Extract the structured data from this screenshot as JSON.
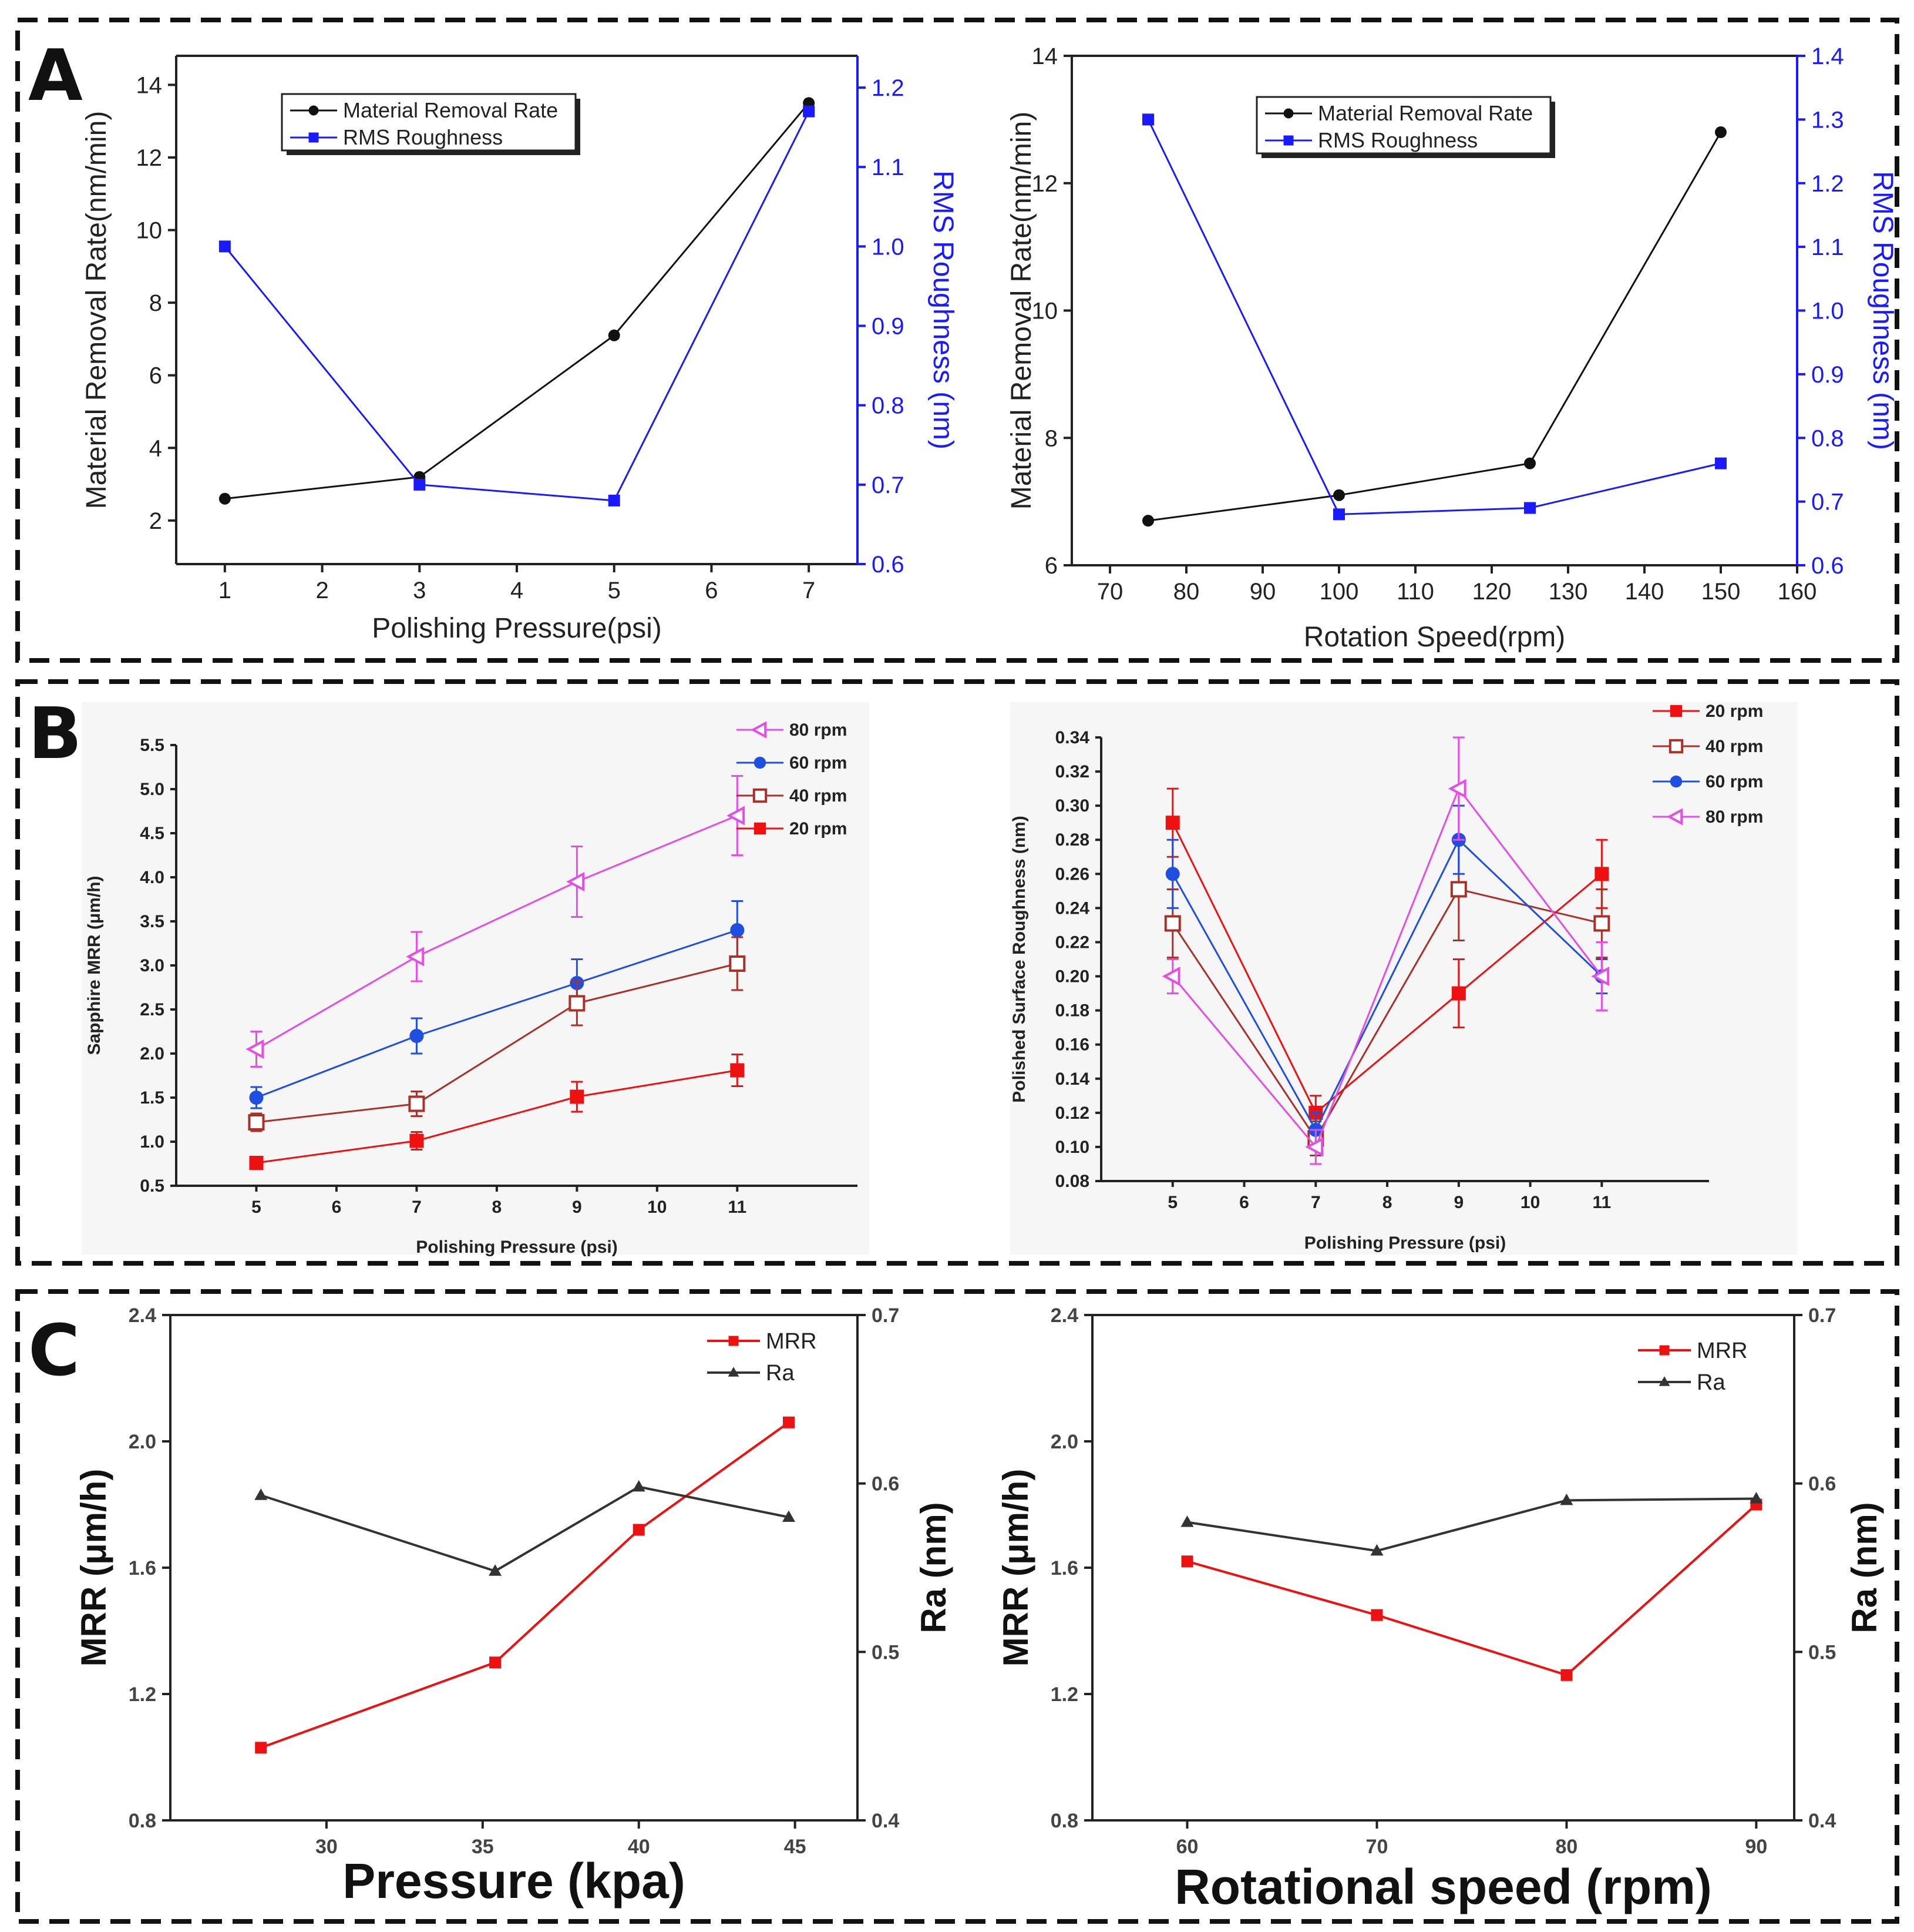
{
  "figure": {
    "panel_labels": [
      "A",
      "B",
      "C"
    ]
  },
  "colors": {
    "black": "#111111",
    "blue": "#1a1aff",
    "magenta": "#e64ce6",
    "royal_blue": "#1f4fe0",
    "brown": "#a8322a",
    "red": "#ee1111",
    "dark_gray": "#333333"
  },
  "chart_data": [
    {
      "id": "A1",
      "type": "line",
      "title": "",
      "xlabel": "Polishing Pressure(psi)",
      "ylabel": "Material Removal Rate(nm/min)",
      "y2label": "RMS Roughness (nm)",
      "xlim": [
        0.5,
        7.5
      ],
      "ylim": [
        0.8,
        14.8
      ],
      "y2lim": [
        0.6,
        1.24
      ],
      "xticks": [
        1,
        2,
        3,
        4,
        5,
        6,
        7
      ],
      "yticks": [
        2,
        4,
        6,
        8,
        10,
        12,
        14
      ],
      "y2ticks": [
        0.6,
        0.7,
        0.8,
        0.9,
        1.0,
        1.1,
        1.2
      ],
      "y2tick_labels": [
        "0.6",
        "0.7",
        "0.8",
        "0.9",
        "1.0",
        "1.1",
        "1.2"
      ],
      "legend_position": "top-left",
      "series": [
        {
          "name": "Material Removal Rate",
          "axis": "left",
          "color": "#111111",
          "marker": "circle",
          "x": [
            1,
            3,
            5,
            7
          ],
          "y": [
            2.6,
            3.2,
            7.1,
            13.5
          ]
        },
        {
          "name": "RMS Roughness",
          "axis": "right",
          "color": "#1a1aff",
          "marker": "square",
          "x": [
            1,
            3,
            5,
            7
          ],
          "y": [
            1.0,
            0.7,
            0.68,
            1.17
          ]
        }
      ]
    },
    {
      "id": "A2",
      "type": "line",
      "title": "",
      "xlabel": "Rotation Speed(rpm)",
      "ylabel": "Material Removal Rate(nm/min)",
      "y2label": "RMS Roughness (nm)",
      "xlim": [
        65,
        160
      ],
      "ylim": [
        6,
        14
      ],
      "y2lim": [
        0.6,
        1.4
      ],
      "xticks": [
        70,
        80,
        90,
        100,
        110,
        120,
        130,
        140,
        150,
        160
      ],
      "yticks": [
        6,
        8,
        10,
        12,
        14
      ],
      "y2ticks": [
        0.6,
        0.7,
        0.8,
        0.9,
        1.0,
        1.1,
        1.2,
        1.3,
        1.4
      ],
      "y2tick_labels": [
        "0.6",
        "0.7",
        "0.8",
        "0.9",
        "1.0",
        "1.1",
        "1.2",
        "1.3",
        "1.4"
      ],
      "legend_position": "top-center",
      "series": [
        {
          "name": "Material Removal Rate",
          "axis": "left",
          "color": "#111111",
          "marker": "circle",
          "x": [
            75,
            100,
            125,
            150
          ],
          "y": [
            6.7,
            7.1,
            7.6,
            12.8
          ]
        },
        {
          "name": "RMS Roughness",
          "axis": "right",
          "color": "#1a1aff",
          "marker": "square",
          "x": [
            75,
            100,
            125,
            150
          ],
          "y": [
            1.3,
            0.68,
            0.69,
            0.76
          ]
        }
      ]
    },
    {
      "id": "B1",
      "type": "line",
      "title": "",
      "xlabel": "Polishing Pressure (psi)",
      "ylabel": "Sapphire MRR (μm/h)",
      "xlim": [
        4,
        12.5
      ],
      "ylim": [
        0.5,
        5.5
      ],
      "xticks": [
        5,
        6,
        7,
        8,
        9,
        10,
        11
      ],
      "yticks": [
        0.5,
        1.0,
        1.5,
        2.0,
        2.5,
        3.0,
        3.5,
        4.0,
        4.5,
        5.0,
        5.5
      ],
      "ytick_labels": [
        "0.5",
        "1.0",
        "1.5",
        "2.0",
        "2.5",
        "3.0",
        "3.5",
        "4.0",
        "4.5",
        "5.0",
        "5.5"
      ],
      "legend_position": "top-right",
      "series": [
        {
          "name": "80 rpm",
          "color": "#e64ce6",
          "marker": "triangle-left-open",
          "x": [
            5,
            7,
            9,
            11
          ],
          "y": [
            2.05,
            3.1,
            3.95,
            4.7
          ],
          "err": [
            0.2,
            0.28,
            0.4,
            0.45
          ]
        },
        {
          "name": "60 rpm",
          "color": "#1f4fe0",
          "marker": "circle",
          "x": [
            5,
            7,
            9,
            11
          ],
          "y": [
            1.5,
            2.2,
            2.8,
            3.4
          ],
          "err": [
            0.12,
            0.2,
            0.27,
            0.33
          ]
        },
        {
          "name": "40 rpm",
          "color": "#a8322a",
          "marker": "square-open",
          "x": [
            5,
            7,
            9,
            11
          ],
          "y": [
            1.22,
            1.43,
            2.57,
            3.02
          ],
          "err": [
            0.1,
            0.14,
            0.25,
            0.3
          ]
        },
        {
          "name": "20 rpm",
          "color": "#ee1111",
          "marker": "square",
          "x": [
            5,
            7,
            9,
            11
          ],
          "y": [
            0.76,
            1.01,
            1.51,
            1.81
          ],
          "err": [
            0.06,
            0.1,
            0.17,
            0.18
          ]
        }
      ]
    },
    {
      "id": "B2",
      "type": "line",
      "title": "",
      "xlabel": "Polishing Pressure (psi)",
      "ylabel": "Polished Surface Roughness (nm)",
      "xlim": [
        4,
        12.5
      ],
      "ylim": [
        0.08,
        0.34
      ],
      "xticks": [
        5,
        6,
        7,
        8,
        9,
        10,
        11
      ],
      "yticks": [
        0.08,
        0.1,
        0.12,
        0.14,
        0.16,
        0.18,
        0.2,
        0.22,
        0.24,
        0.26,
        0.28,
        0.3,
        0.32,
        0.34
      ],
      "ytick_labels": [
        "0.08",
        "0.10",
        "0.12",
        "0.14",
        "0.16",
        "0.18",
        "0.20",
        "0.22",
        "0.24",
        "0.26",
        "0.28",
        "0.30",
        "0.32",
        "0.34"
      ],
      "legend_position": "top-right",
      "series": [
        {
          "name": "20 rpm",
          "color": "#ee1111",
          "marker": "square",
          "x": [
            5,
            7,
            9,
            11
          ],
          "y": [
            0.29,
            0.12,
            0.19,
            0.26
          ],
          "err": [
            0.02,
            0.01,
            0.02,
            0.02
          ]
        },
        {
          "name": "40 rpm",
          "color": "#a8322a",
          "marker": "square-open",
          "x": [
            5,
            7,
            9,
            11
          ],
          "y": [
            0.231,
            0.105,
            0.251,
            0.231
          ],
          "err": [
            0.02,
            0.01,
            0.03,
            0.02
          ]
        },
        {
          "name": "60 rpm",
          "color": "#1f4fe0",
          "marker": "circle",
          "x": [
            5,
            7,
            9,
            11
          ],
          "y": [
            0.26,
            0.11,
            0.28,
            0.2
          ],
          "err": [
            0.02,
            0.01,
            0.02,
            0.01
          ]
        },
        {
          "name": "80 rpm",
          "color": "#e64ce6",
          "marker": "triangle-left-open",
          "x": [
            5,
            7,
            9,
            11
          ],
          "y": [
            0.2,
            0.1,
            0.31,
            0.2
          ],
          "err": [
            0.01,
            0.01,
            0.03,
            0.02
          ]
        }
      ]
    },
    {
      "id": "C1",
      "type": "line",
      "title": "",
      "xlabel": "Pressure (kpa)",
      "ylabel": "MRR (μm/h)",
      "y2label": "Ra (nm)",
      "xlim": [
        25,
        47
      ],
      "ylim": [
        0.8,
        2.4
      ],
      "y2lim": [
        0.4,
        0.7
      ],
      "xticks": [
        30,
        35,
        40,
        45
      ],
      "yticks": [
        0.8,
        1.2,
        1.6,
        2.0,
        2.4
      ],
      "ytick_labels": [
        "0.8",
        "1.2",
        "1.6",
        "2.0",
        "2.4"
      ],
      "y2ticks": [
        0.4,
        0.5,
        0.6,
        0.7
      ],
      "y2tick_labels": [
        "0.4",
        "0.5",
        "0.6",
        "0.7"
      ],
      "legend_position": "top-right",
      "series": [
        {
          "name": "MRR",
          "axis": "left",
          "color": "#ee1111",
          "marker": "square",
          "x": [
            27.9,
            35.4,
            40.0,
            44.8
          ],
          "y": [
            1.03,
            1.3,
            1.72,
            2.06
          ]
        },
        {
          "name": "Ra",
          "axis": "right",
          "color": "#333333",
          "marker": "triangle",
          "x": [
            27.9,
            35.4,
            40.0,
            44.8
          ],
          "y": [
            0.593,
            0.548,
            0.598,
            0.58
          ]
        }
      ]
    },
    {
      "id": "C2",
      "type": "line",
      "title": "",
      "xlabel": "Rotational speed (rpm)",
      "ylabel": "MRR (μm/h)",
      "y2label": "Ra (nm)",
      "xlim": [
        55,
        92
      ],
      "ylim": [
        0.8,
        2.4
      ],
      "y2lim": [
        0.4,
        0.7
      ],
      "xticks": [
        60,
        70,
        80,
        90
      ],
      "yticks": [
        0.8,
        1.2,
        1.6,
        2.0,
        2.4
      ],
      "ytick_labels": [
        "0.8",
        "1.2",
        "1.6",
        "2.0",
        "2.4"
      ],
      "y2ticks": [
        0.4,
        0.5,
        0.6,
        0.7
      ],
      "y2tick_labels": [
        "0.4",
        "0.5",
        "0.6",
        "0.7"
      ],
      "legend_position": "top-right",
      "series": [
        {
          "name": "MRR",
          "axis": "left",
          "color": "#ee1111",
          "marker": "square",
          "x": [
            60,
            70,
            80,
            90
          ],
          "y": [
            1.62,
            1.45,
            1.26,
            1.8
          ]
        },
        {
          "name": "Ra",
          "axis": "right",
          "color": "#333333",
          "marker": "triangle",
          "x": [
            60,
            70,
            80,
            90
          ],
          "y": [
            0.577,
            0.56,
            0.59,
            0.591
          ]
        }
      ]
    }
  ]
}
